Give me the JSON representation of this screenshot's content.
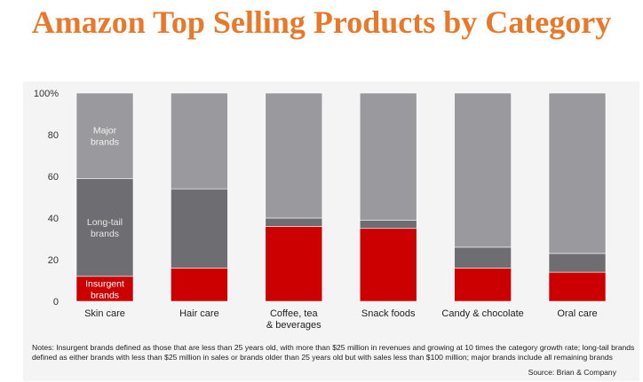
{
  "title": "Amazon Top Selling Products by Category",
  "chart_data": {
    "type": "bar",
    "stacked": true,
    "categories": [
      "Skin care",
      "Hair care",
      "Coffee, tea\n& beverages",
      "Snack foods",
      "Candy & chocolate",
      "Oral care"
    ],
    "series": [
      {
        "name": "Insurgent\nbrands",
        "values": [
          12,
          16,
          36,
          35,
          16,
          14
        ],
        "color": "#cc0000",
        "label_color": "#ffffff"
      },
      {
        "name": "Long-tail\nbrands",
        "values": [
          47,
          38,
          4,
          4,
          10,
          9
        ],
        "color": "#6e6e72",
        "label_color": "#e6e6e6"
      },
      {
        "name": "Major\nbrands",
        "values": [
          41,
          46,
          60,
          61,
          74,
          77
        ],
        "color": "#9a9a9e",
        "label_color": "#f2f2f2"
      }
    ],
    "yticks": [
      "0",
      "20",
      "40",
      "60",
      "80",
      "100%"
    ],
    "ylim": [
      0,
      100
    ],
    "grid": false,
    "legend": "inline labels on first bar"
  },
  "notes": "Notes: Insurgent brands defined as those that are less than 25 years old, with more than $25 million in revenues and growing at 10 times the category growth rate; long-tail brands defined as either brands with less than $25 million in sales or brands older than 25 years old but with sales less than $100 million; major brands include all remaining brands",
  "source": "Source: Brian & Company"
}
